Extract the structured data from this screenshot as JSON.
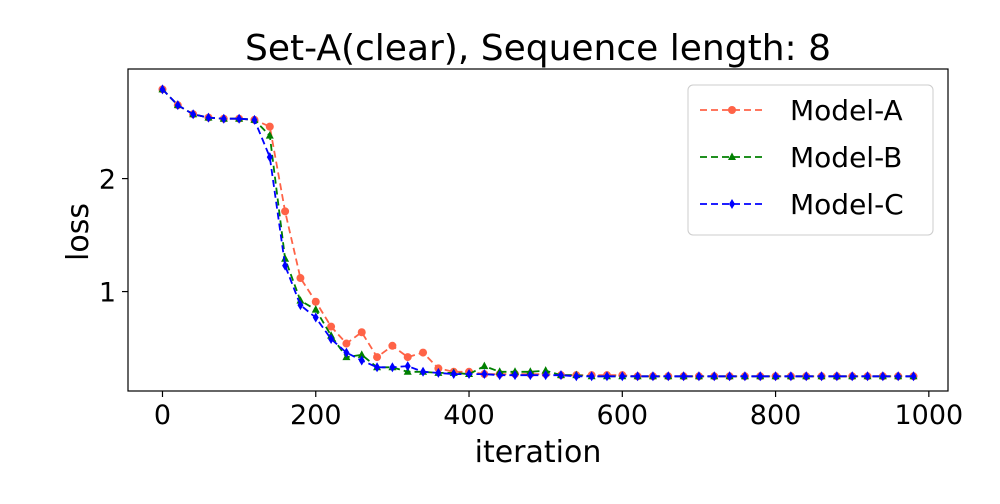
{
  "chart_data": {
    "type": "line",
    "title": "Set-A(clear), Sequence length: 8",
    "xlabel": "iteration",
    "ylabel": "loss",
    "xlim": [
      -45,
      1025
    ],
    "ylim": [
      0.12,
      2.97
    ],
    "xticks": [
      0,
      200,
      400,
      600,
      800,
      1000
    ],
    "yticks": [
      1,
      2
    ],
    "grid": false,
    "legend_position": "top-right",
    "x": [
      0,
      20,
      40,
      60,
      80,
      100,
      120,
      140,
      160,
      180,
      200,
      220,
      240,
      260,
      280,
      300,
      320,
      340,
      360,
      380,
      400,
      420,
      440,
      460,
      480,
      500,
      520,
      540,
      560,
      580,
      600,
      620,
      640,
      660,
      680,
      700,
      720,
      740,
      760,
      780,
      800,
      820,
      840,
      860,
      880,
      900,
      920,
      940,
      960,
      980
    ],
    "series": [
      {
        "name": "Model-A",
        "color": "#ff6347",
        "marker": "circle",
        "values": [
          2.79,
          2.65,
          2.57,
          2.54,
          2.53,
          2.53,
          2.52,
          2.46,
          1.71,
          1.12,
          0.91,
          0.69,
          0.54,
          0.64,
          0.42,
          0.52,
          0.42,
          0.46,
          0.32,
          0.29,
          0.29,
          0.27,
          0.27,
          0.27,
          0.27,
          0.27,
          0.26,
          0.26,
          0.26,
          0.26,
          0.26,
          0.25,
          0.25,
          0.25,
          0.25,
          0.25,
          0.25,
          0.25,
          0.25,
          0.25,
          0.25,
          0.25,
          0.25,
          0.25,
          0.25,
          0.25,
          0.25,
          0.25,
          0.25,
          0.25
        ]
      },
      {
        "name": "Model-B",
        "color": "#008000",
        "marker": "triangle",
        "values": [
          2.79,
          2.65,
          2.57,
          2.54,
          2.53,
          2.53,
          2.52,
          2.38,
          1.29,
          0.92,
          0.84,
          0.61,
          0.42,
          0.44,
          0.33,
          0.33,
          0.29,
          0.29,
          0.28,
          0.28,
          0.27,
          0.34,
          0.29,
          0.29,
          0.29,
          0.3,
          0.26,
          0.26,
          0.25,
          0.25,
          0.25,
          0.25,
          0.25,
          0.25,
          0.25,
          0.25,
          0.25,
          0.25,
          0.25,
          0.25,
          0.25,
          0.25,
          0.25,
          0.25,
          0.25,
          0.25,
          0.25,
          0.25,
          0.25,
          0.25
        ]
      },
      {
        "name": "Model-C",
        "color": "#0000ff",
        "marker": "diamond",
        "values": [
          2.79,
          2.65,
          2.57,
          2.54,
          2.53,
          2.53,
          2.52,
          2.19,
          1.23,
          0.88,
          0.77,
          0.58,
          0.46,
          0.39,
          0.33,
          0.33,
          0.34,
          0.29,
          0.28,
          0.27,
          0.27,
          0.27,
          0.26,
          0.26,
          0.26,
          0.26,
          0.26,
          0.25,
          0.25,
          0.25,
          0.25,
          0.25,
          0.25,
          0.25,
          0.25,
          0.25,
          0.25,
          0.25,
          0.25,
          0.25,
          0.25,
          0.25,
          0.25,
          0.25,
          0.25,
          0.25,
          0.25,
          0.25,
          0.25,
          0.25
        ]
      }
    ]
  }
}
